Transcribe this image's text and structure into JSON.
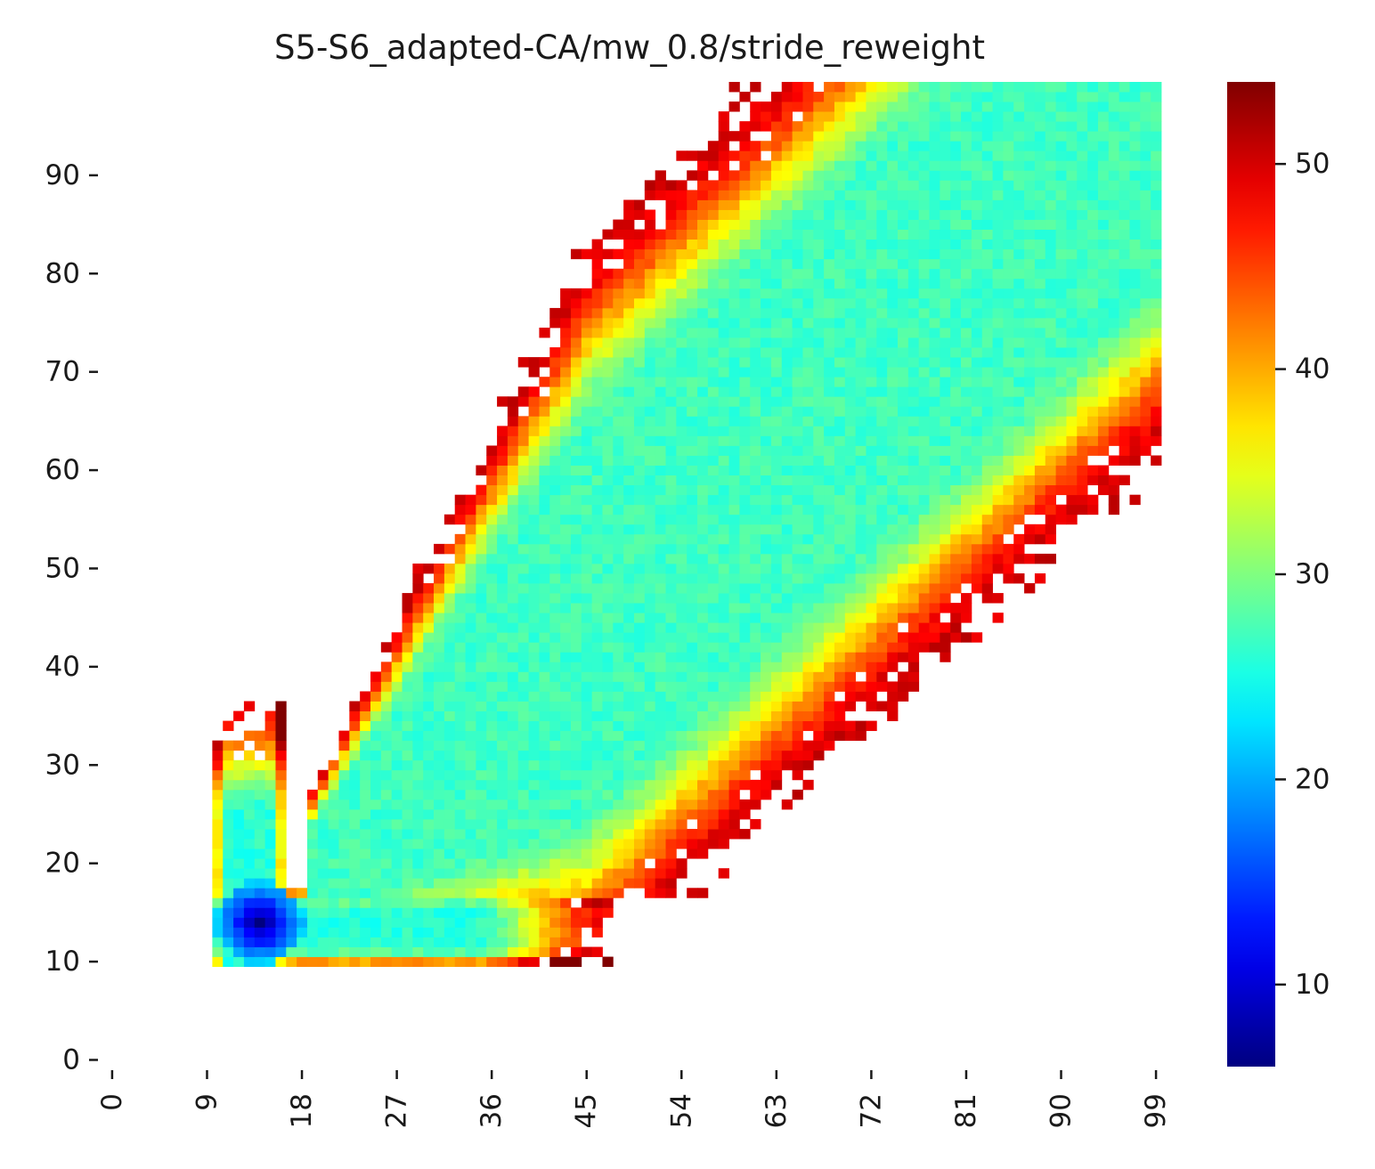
{
  "chart_data": {
    "type": "heatmap",
    "title": "S5-S6_adapted-CA/mw_0.8/stride_reweight",
    "xlabel": "",
    "ylabel": "",
    "x_ticks": [
      "0",
      "9",
      "18",
      "27",
      "36",
      "45",
      "54",
      "63",
      "72",
      "81",
      "90",
      "99"
    ],
    "y_ticks": [
      "0",
      "10",
      "20",
      "30",
      "40",
      "50",
      "60",
      "70",
      "80",
      "90"
    ],
    "grid_size": [
      100,
      100
    ],
    "xlim": [
      0,
      99
    ],
    "ylim": [
      0,
      99
    ],
    "colormap": "jet",
    "value_range": [
      6,
      54
    ],
    "colorbar_ticks": [
      "10",
      "20",
      "30",
      "40",
      "50"
    ],
    "colorbar_values": [
      10,
      20,
      30,
      40,
      50
    ],
    "empty_cells": "blank (NaN) outside populated region",
    "regions": [
      {
        "name": "diagonal band",
        "x_range": [
          18,
          99
        ],
        "y_range": [
          18,
          99
        ],
        "center_value": 28,
        "edge_value": 50
      },
      {
        "name": "vertical arm",
        "x_range": [
          10,
          16
        ],
        "y_range": [
          10,
          35
        ],
        "center_value": 26,
        "edge_value": 48
      },
      {
        "name": "horizontal arm",
        "x_range": [
          10,
          46
        ],
        "y_range": [
          10,
          17
        ],
        "center_value": 27,
        "edge_value": 48
      },
      {
        "name": "low-value core",
        "x_center": 14,
        "y_center": 14,
        "center_value": 6
      }
    ]
  }
}
